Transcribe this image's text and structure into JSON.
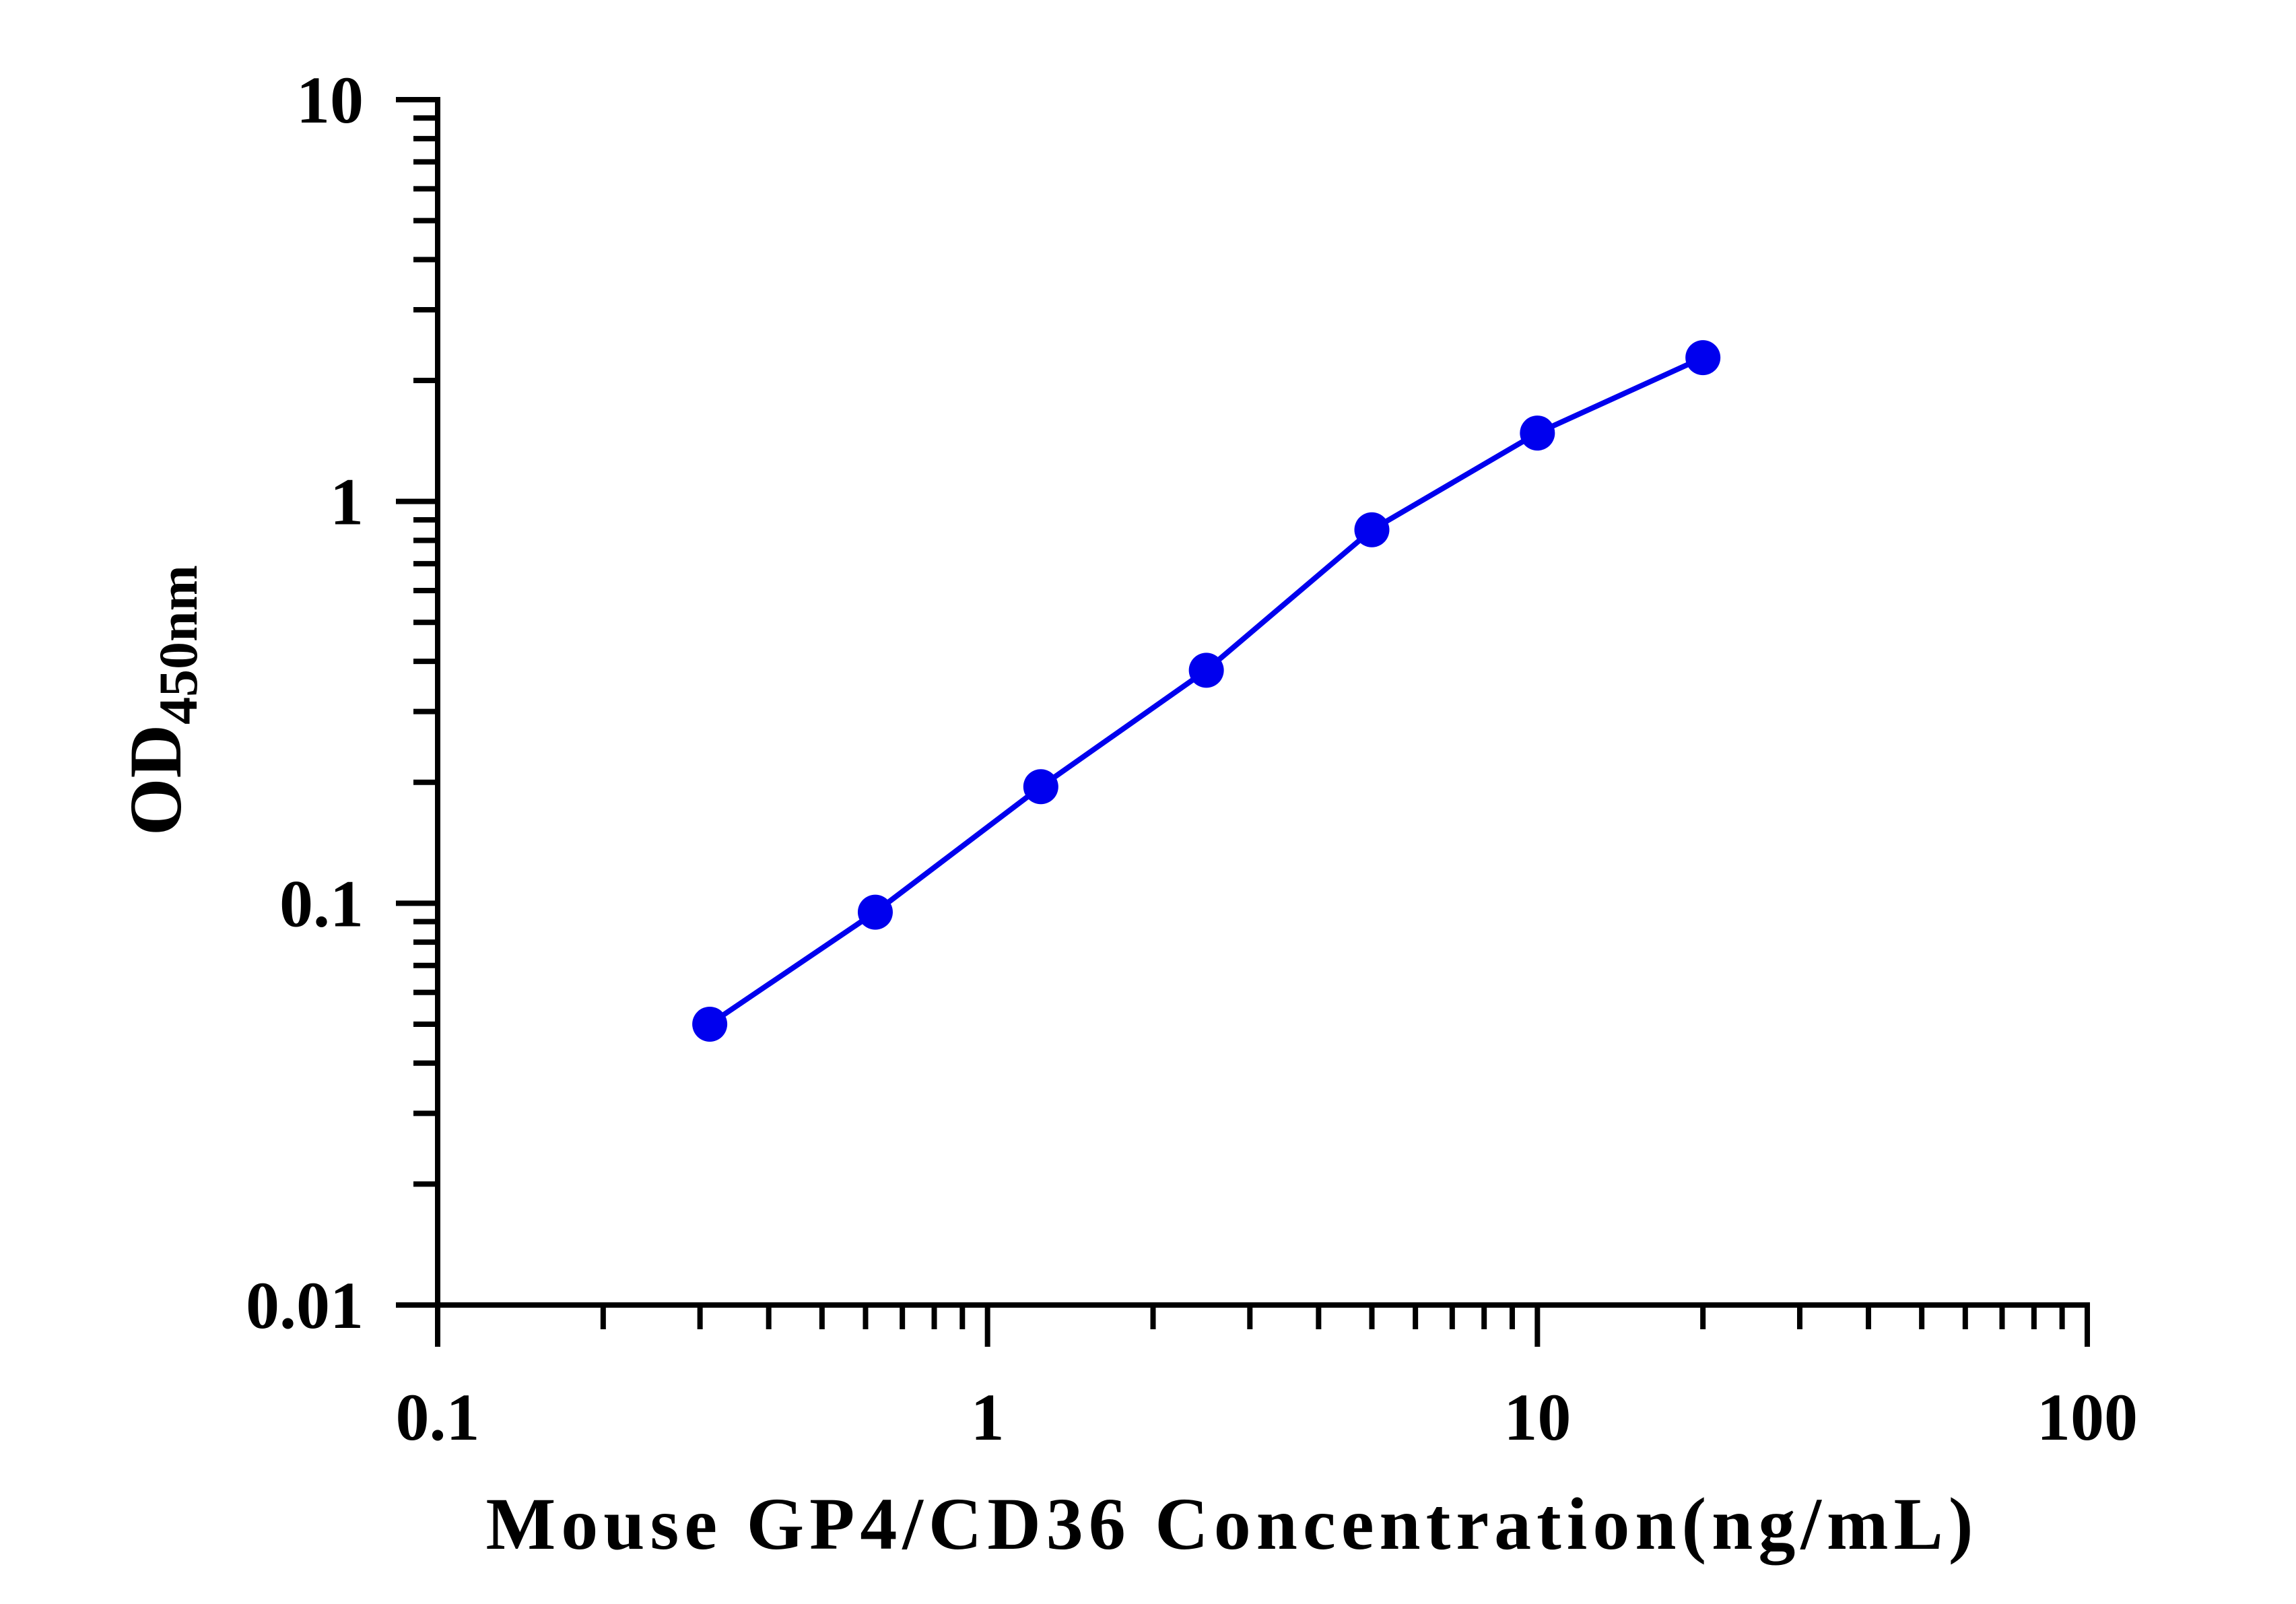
{
  "chart_data": {
    "type": "line",
    "x_scale": "log",
    "y_scale": "log",
    "xlim": [
      0.1,
      100
    ],
    "ylim": [
      0.01,
      10
    ],
    "x_ticks": [
      "0.1",
      "1",
      "10",
      "100"
    ],
    "y_ticks": [
      "0.01",
      "0.1",
      "1",
      "10"
    ],
    "xlabel": "Mouse GP4/CD36 Concentration(ng/mL)",
    "ylabel_main": "OD",
    "ylabel_sub": "450nm",
    "grid": false,
    "series": [
      {
        "color": "#0000ee",
        "marker": "circle",
        "x": [
          0.3125,
          0.625,
          1.25,
          2.5,
          5,
          10,
          20
        ],
        "y": [
          0.05,
          0.095,
          0.195,
          0.38,
          0.85,
          1.48,
          2.28
        ]
      }
    ]
  }
}
